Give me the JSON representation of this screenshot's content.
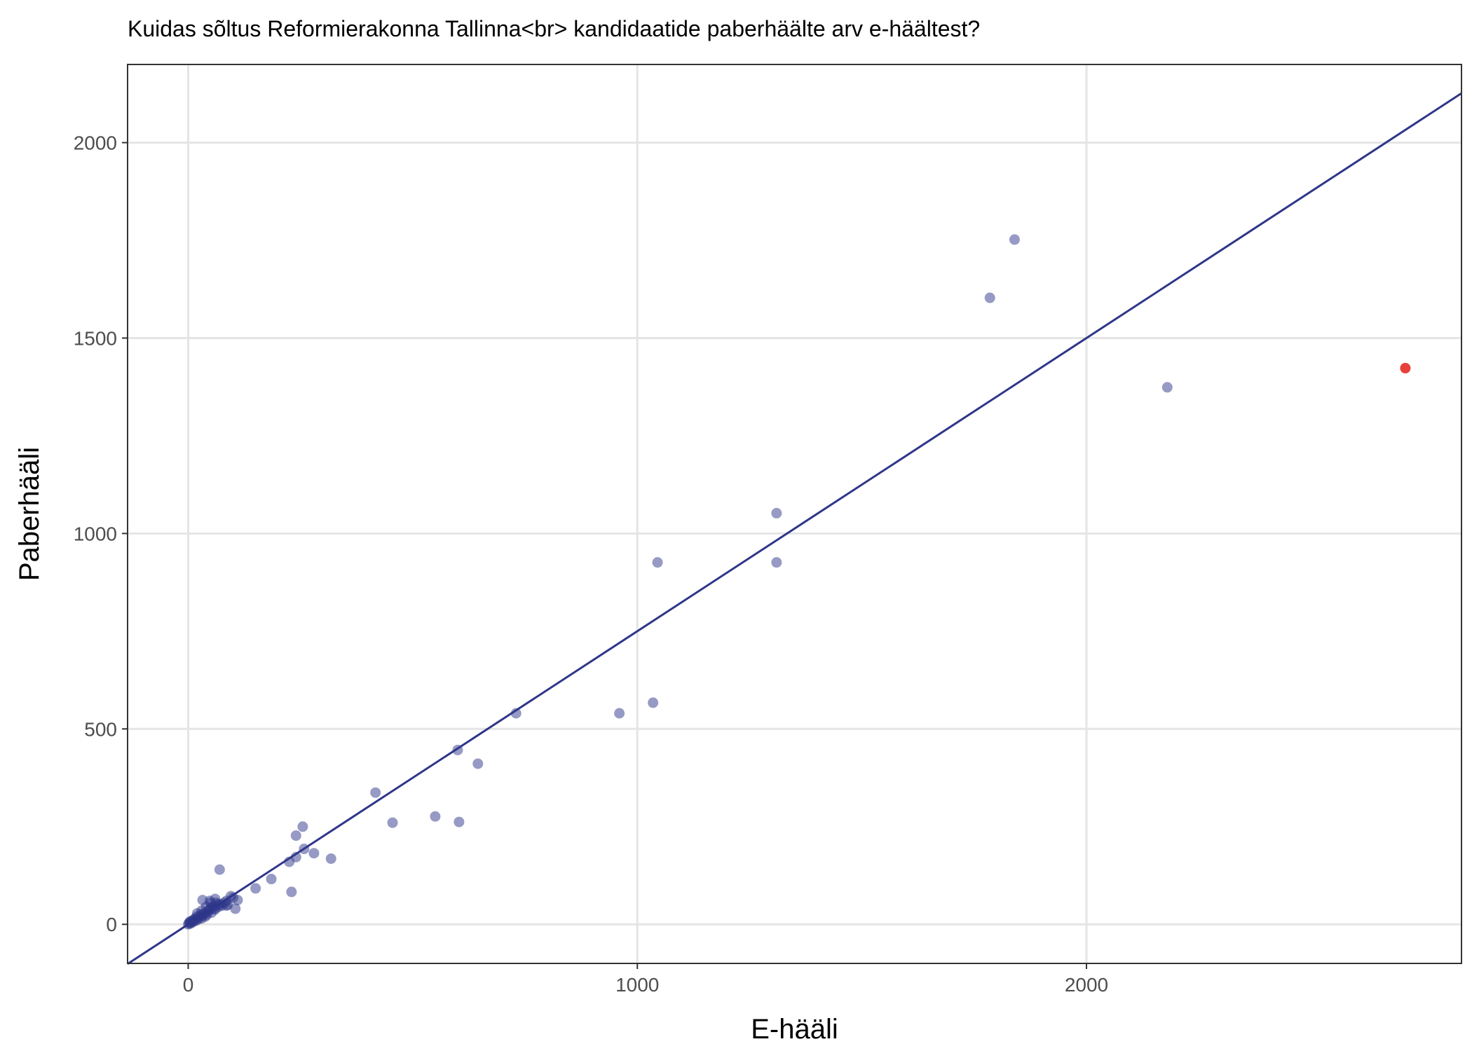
{
  "chart_data": {
    "type": "scatter",
    "title": "Kuidas sõltus Reformierakonna Tallinna<br> kandidaatide paberhäälte arv e-häältest?",
    "xlabel": "E-hääli",
    "ylabel": "Paberhääli",
    "xlim": [
      -135,
      2835
    ],
    "ylim": [
      -100,
      2200
    ],
    "x_ticks": [
      0,
      1000,
      2000
    ],
    "x_tick_labels": [
      "0",
      "1000",
      "2000"
    ],
    "y_ticks": [
      0,
      500,
      1000,
      1500,
      2000
    ],
    "y_tick_labels": [
      "0",
      "500",
      "1000",
      "1500",
      "2000"
    ],
    "grid": true,
    "reference_line": {
      "kind": "fitted line",
      "intercept": 0,
      "slope": 0.75,
      "color": "#2E3689"
    },
    "series": [
      {
        "color": "#2E3689",
        "opacity": 0.5,
        "points": [
          [
            0,
            0
          ],
          [
            2,
            3
          ],
          [
            3,
            6
          ],
          [
            5,
            2
          ],
          [
            6,
            8
          ],
          [
            8,
            5
          ],
          [
            10,
            10
          ],
          [
            12,
            7
          ],
          [
            14,
            12
          ],
          [
            15,
            15
          ],
          [
            18,
            10
          ],
          [
            20,
            20
          ],
          [
            22,
            13
          ],
          [
            25,
            18
          ],
          [
            28,
            25
          ],
          [
            30,
            15
          ],
          [
            32,
            22
          ],
          [
            35,
            28
          ],
          [
            38,
            20
          ],
          [
            40,
            30
          ],
          [
            42,
            25
          ],
          [
            45,
            35
          ],
          [
            48,
            38
          ],
          [
            50,
            42
          ],
          [
            52,
            30
          ],
          [
            55,
            45
          ],
          [
            58,
            40
          ],
          [
            60,
            38
          ],
          [
            62,
            55
          ],
          [
            65,
            50
          ],
          [
            68,
            45
          ],
          [
            70,
            52
          ],
          [
            75,
            48
          ],
          [
            80,
            55
          ],
          [
            85,
            60
          ],
          [
            88,
            50
          ],
          [
            40,
            45
          ],
          [
            30,
            35
          ],
          [
            20,
            28
          ],
          [
            50,
            55
          ],
          [
            32,
            62
          ],
          [
            48,
            60
          ],
          [
            60,
            65
          ],
          [
            70,
            140
          ],
          [
            85,
            48
          ],
          [
            95,
            72
          ],
          [
            100,
            68
          ],
          [
            105,
            40
          ],
          [
            110,
            62
          ],
          [
            150,
            92
          ],
          [
            185,
            116
          ],
          [
            225,
            160
          ],
          [
            230,
            83
          ],
          [
            240,
            172
          ],
          [
            240,
            227
          ],
          [
            255,
            250
          ],
          [
            258,
            193
          ],
          [
            280,
            182
          ],
          [
            318,
            168
          ],
          [
            417,
            337
          ],
          [
            455,
            260
          ],
          [
            550,
            276
          ],
          [
            600,
            446
          ],
          [
            603,
            262
          ],
          [
            645,
            411
          ],
          [
            730,
            540
          ],
          [
            960,
            540
          ],
          [
            1035,
            567
          ],
          [
            1045,
            926
          ],
          [
            1310,
            1052
          ],
          [
            1310,
            926
          ],
          [
            1785,
            1603
          ],
          [
            1840,
            1752
          ],
          [
            2180,
            1374
          ]
        ]
      },
      {
        "color": "#E8413C",
        "opacity": 1,
        "points": [
          [
            2710,
            1423
          ]
        ]
      }
    ]
  }
}
